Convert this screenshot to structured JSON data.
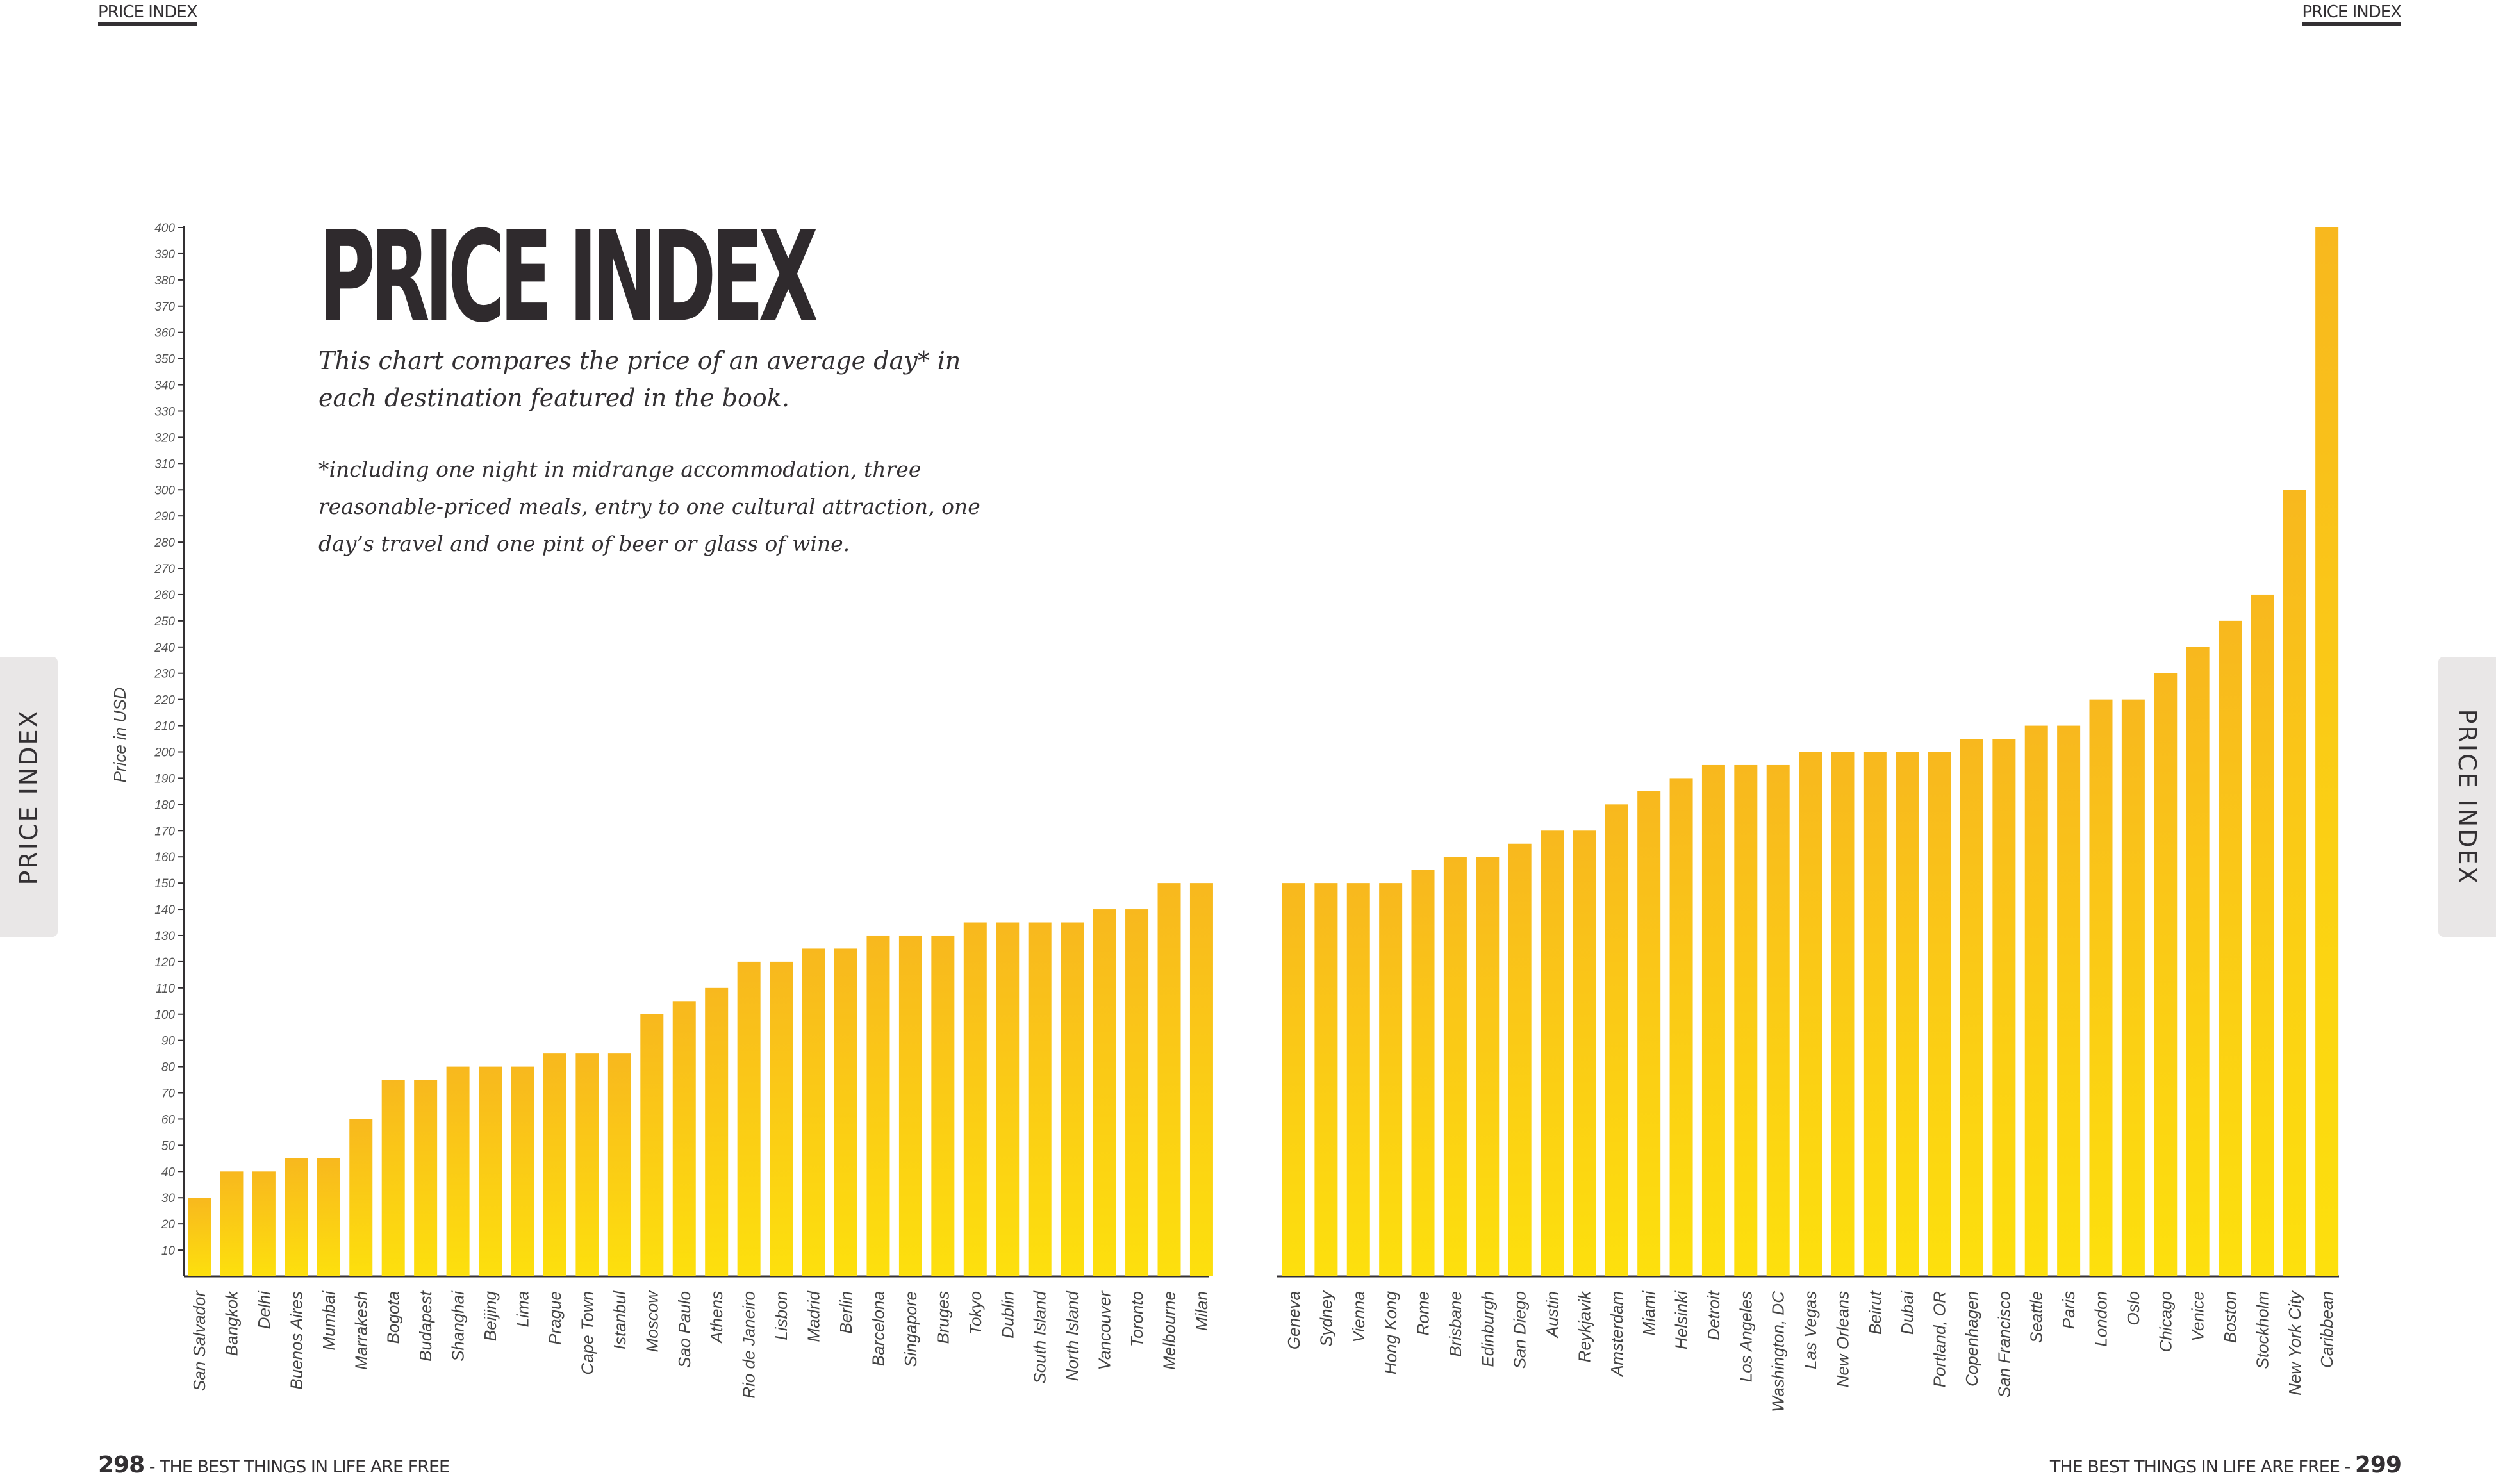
{
  "header": {
    "left_running_head": "PRICE INDEX",
    "right_running_head": "PRICE INDEX"
  },
  "side_tabs": {
    "left_label": "PRICE INDEX",
    "right_label": "PRICE INDEX"
  },
  "footer": {
    "left_page_number": "298",
    "left_text": " - THE BEST THINGS IN LIFE ARE FREE",
    "right_text": "THE BEST THINGS IN LIFE ARE FREE - ",
    "right_page_number": "299"
  },
  "intro": {
    "title": "PRICE INDEX",
    "subtitle": "This chart compares the price of an average day* in each destination featured in the book.",
    "footnote": "*including one night in midrange accommodation, three reasonable-priced meals, entry to one cultural attraction, one day’s travel and one pint of beer or glass of wine."
  },
  "colors": {
    "bar_top": "#f8b81e",
    "bar_bottom": "#fde00d",
    "axis": "#333033"
  },
  "chart_data": {
    "type": "bar",
    "title": "PRICE INDEX",
    "ylabel": "Price in USD",
    "xlabel": "",
    "ylim": [
      0,
      400
    ],
    "yticks": [
      10,
      20,
      30,
      40,
      50,
      60,
      70,
      80,
      90,
      100,
      110,
      120,
      130,
      140,
      150,
      160,
      170,
      180,
      190,
      200,
      210,
      220,
      230,
      240,
      250,
      260,
      270,
      280,
      290,
      300,
      310,
      320,
      330,
      340,
      350,
      360,
      370,
      380,
      390,
      400
    ],
    "groups": [
      {
        "categories": [
          "San Salvador",
          "Bangkok",
          "Delhi",
          "Buenos Aires",
          "Mumbai",
          "Marrakesh",
          "Bogota",
          "Budapest",
          "Shanghai",
          "Beijing",
          "Lima",
          "Prague",
          "Cape Town",
          "Istanbul",
          "Moscow",
          "Sao Paulo",
          "Athens",
          "Rio de Janeiro",
          "Lisbon",
          "Madrid",
          "Berlin",
          "Barcelona",
          "Singapore",
          "Bruges",
          "Tokyo",
          "Dublin",
          "South Island",
          "North Island",
          "Vancouver",
          "Toronto",
          "Melbourne",
          "Milan"
        ],
        "values": [
          30,
          40,
          40,
          45,
          45,
          60,
          75,
          75,
          80,
          80,
          80,
          85,
          85,
          85,
          100,
          105,
          110,
          120,
          120,
          125,
          125,
          130,
          130,
          130,
          135,
          135,
          135,
          135,
          140,
          140,
          150,
          150
        ]
      },
      {
        "categories": [
          "Geneva",
          "Sydney",
          "Vienna",
          "Hong Kong",
          "Rome",
          "Brisbane",
          "Edinburgh",
          "San Diego",
          "Austin",
          "Reykjavik",
          "Amsterdam",
          "Miami",
          "Helsinki",
          "Detroit",
          "Los Angeles",
          "Washington, DC",
          "Las Vegas",
          "New Orleans",
          "Beirut",
          "Dubai",
          "Portland, OR",
          "Copenhagen",
          "San Francisco",
          "Seattle",
          "Paris",
          "London",
          "Oslo",
          "Chicago",
          "Venice",
          "Boston",
          "Stockholm",
          "New York City",
          "Caribbean"
        ],
        "values": [
          150,
          150,
          150,
          150,
          155,
          160,
          160,
          165,
          170,
          170,
          180,
          185,
          190,
          195,
          195,
          195,
          200,
          200,
          200,
          200,
          200,
          205,
          205,
          210,
          210,
          220,
          220,
          230,
          240,
          250,
          260,
          300,
          400
        ]
      }
    ],
    "grid": false,
    "legend": "none"
  }
}
